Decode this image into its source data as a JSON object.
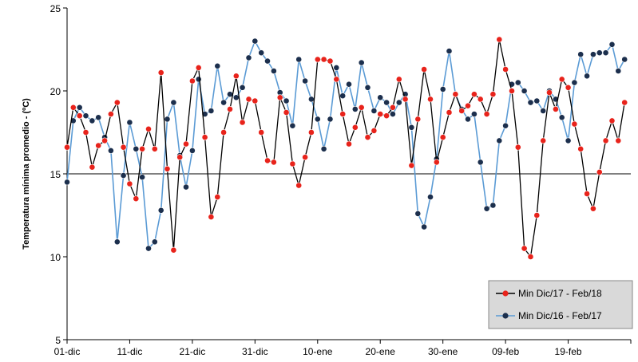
{
  "chart_data": {
    "type": "line",
    "title": "",
    "xlabel": "",
    "ylabel": "Temperatura mínima promedio - (ºC)",
    "ylim": [
      5,
      25
    ],
    "yticks": [
      5,
      10,
      15,
      20,
      25
    ],
    "x_tick_labels": [
      "01-dic",
      "11-dic",
      "21-dic",
      "31-dic",
      "10-ene",
      "20-ene",
      "30-ene",
      "09-feb",
      "19-feb"
    ],
    "x_tick_day_index": [
      0,
      10,
      20,
      30,
      40,
      50,
      60,
      70,
      80
    ],
    "x_day_count": 90,
    "reference_line": 15,
    "grid": false,
    "legend_position": "bottom-right",
    "series": [
      {
        "name": "Min Dic/17 - Feb/18",
        "line_color": "#000000",
        "marker_color": "#e8231b",
        "values": [
          16.6,
          19.0,
          18.5,
          17.5,
          15.4,
          16.7,
          17.0,
          18.6,
          19.3,
          16.6,
          14.4,
          13.5,
          16.5,
          17.7,
          16.5,
          21.1,
          15.3,
          10.4,
          16.0,
          16.8,
          20.6,
          21.4,
          17.2,
          12.4,
          13.6,
          17.5,
          18.9,
          20.9,
          18.1,
          19.5,
          19.4,
          17.5,
          15.8,
          15.7,
          19.6,
          18.7,
          15.6,
          14.3,
          16.0,
          17.5,
          21.9,
          21.9,
          21.8,
          20.7,
          18.6,
          16.8,
          17.8,
          19.0,
          17.2,
          17.6,
          18.6,
          18.5,
          19.0,
          20.7,
          19.5,
          15.5,
          18.3,
          21.3,
          19.5,
          15.7,
          17.2,
          18.7,
          19.8,
          18.8,
          19.1,
          19.8,
          19.5,
          18.6,
          19.8,
          23.1,
          21.3,
          20.0,
          16.6,
          10.5,
          10.0,
          12.5,
          17.0,
          19.9,
          18.9,
          20.7,
          20.2,
          18.0,
          16.5,
          13.8,
          12.9,
          15.1,
          17.0,
          18.2,
          17.0,
          19.3
        ]
      },
      {
        "name": "Min Dic/16 - Feb/17",
        "line_color": "#5b9bd5",
        "marker_color": "#1c2f4d",
        "values": [
          14.5,
          18.2,
          19.0,
          18.5,
          18.2,
          18.4,
          17.2,
          16.4,
          10.9,
          14.9,
          18.1,
          16.5,
          14.8,
          10.5,
          10.9,
          12.8,
          18.3,
          19.3,
          16.1,
          14.2,
          16.4,
          20.7,
          18.6,
          18.8,
          21.5,
          19.3,
          19.8,
          19.6,
          20.2,
          22.0,
          23.0,
          22.3,
          21.8,
          21.2,
          19.9,
          19.4,
          17.9,
          21.9,
          20.6,
          19.5,
          18.3,
          16.5,
          18.3,
          21.4,
          19.7,
          20.4,
          18.9,
          21.7,
          20.2,
          18.8,
          19.6,
          19.3,
          18.6,
          19.3,
          19.8,
          17.8,
          12.6,
          11.8,
          13.6,
          15.9,
          20.1,
          22.4,
          19.8,
          18.9,
          18.3,
          18.6,
          15.7,
          12.9,
          13.1,
          17.0,
          17.9,
          20.4,
          20.5,
          20.0,
          19.3,
          19.4,
          18.8,
          20.0,
          19.5,
          18.4,
          17.0,
          20.5,
          22.2,
          20.9,
          22.2,
          22.3,
          22.3,
          22.8,
          21.2,
          21.9
        ]
      }
    ]
  }
}
